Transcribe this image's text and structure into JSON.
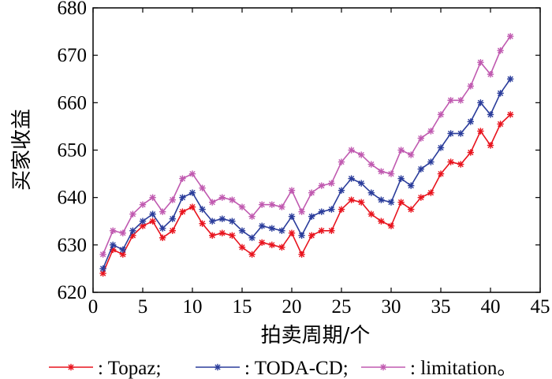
{
  "chart_data": {
    "type": "line",
    "xlabel": "拍卖周期/个",
    "ylabel": "买家收益",
    "xlim": [
      0,
      45
    ],
    "ylim": [
      620,
      680
    ],
    "xticks": [
      "0",
      "5",
      "10",
      "15",
      "20",
      "25",
      "30",
      "35",
      "40",
      "45"
    ],
    "yticks": [
      "620",
      "630",
      "640",
      "650",
      "660",
      "670",
      "680"
    ],
    "grid": false,
    "legend_position": "bottom",
    "x": [
      1,
      2,
      3,
      4,
      5,
      6,
      7,
      8,
      9,
      10,
      11,
      12,
      13,
      14,
      15,
      16,
      17,
      18,
      19,
      20,
      21,
      22,
      23,
      24,
      25,
      26,
      27,
      28,
      29,
      30,
      31,
      32,
      33,
      34,
      35,
      36,
      37,
      38,
      39,
      40,
      41,
      42
    ],
    "series": [
      {
        "name": ": Topaz;",
        "color": "#e8141e",
        "values": [
          624,
          629,
          628,
          632,
          634,
          635,
          631.5,
          633,
          637,
          638,
          634.5,
          632,
          632.5,
          632,
          629.5,
          628,
          630.5,
          630,
          629.5,
          632.5,
          628,
          632,
          633,
          633,
          637.5,
          639.5,
          639,
          636.5,
          635,
          634,
          639,
          637.5,
          640,
          641,
          645,
          647.5,
          647,
          649.5,
          654,
          651,
          655.5,
          657.5
        ]
      },
      {
        "name": ": TODA-CD;",
        "color": "#2b3d9b",
        "values": [
          625,
          630,
          629,
          633,
          635,
          636.5,
          633.5,
          635.5,
          640,
          641,
          637.5,
          635,
          635.5,
          635,
          633,
          631.5,
          634,
          633.5,
          633,
          636,
          632,
          636,
          637,
          637.5,
          641.5,
          644,
          643,
          641,
          639.5,
          639,
          644,
          642.5,
          646,
          647.5,
          650.5,
          653.5,
          653.5,
          656,
          660,
          657.5,
          662,
          665
        ]
      },
      {
        "name": ": limitation。",
        "color": "#c05ab0",
        "values": [
          628,
          633,
          632.5,
          636.5,
          638.5,
          640,
          637,
          639.5,
          644,
          645,
          642,
          639,
          640,
          639.5,
          638,
          636,
          638.5,
          638.5,
          638,
          641.5,
          637,
          641,
          642.5,
          643,
          647.5,
          650,
          649,
          647,
          645.5,
          645,
          650,
          649,
          652.5,
          654,
          657.5,
          660.5,
          660.5,
          663.5,
          668.5,
          666,
          671,
          674
        ]
      }
    ]
  }
}
